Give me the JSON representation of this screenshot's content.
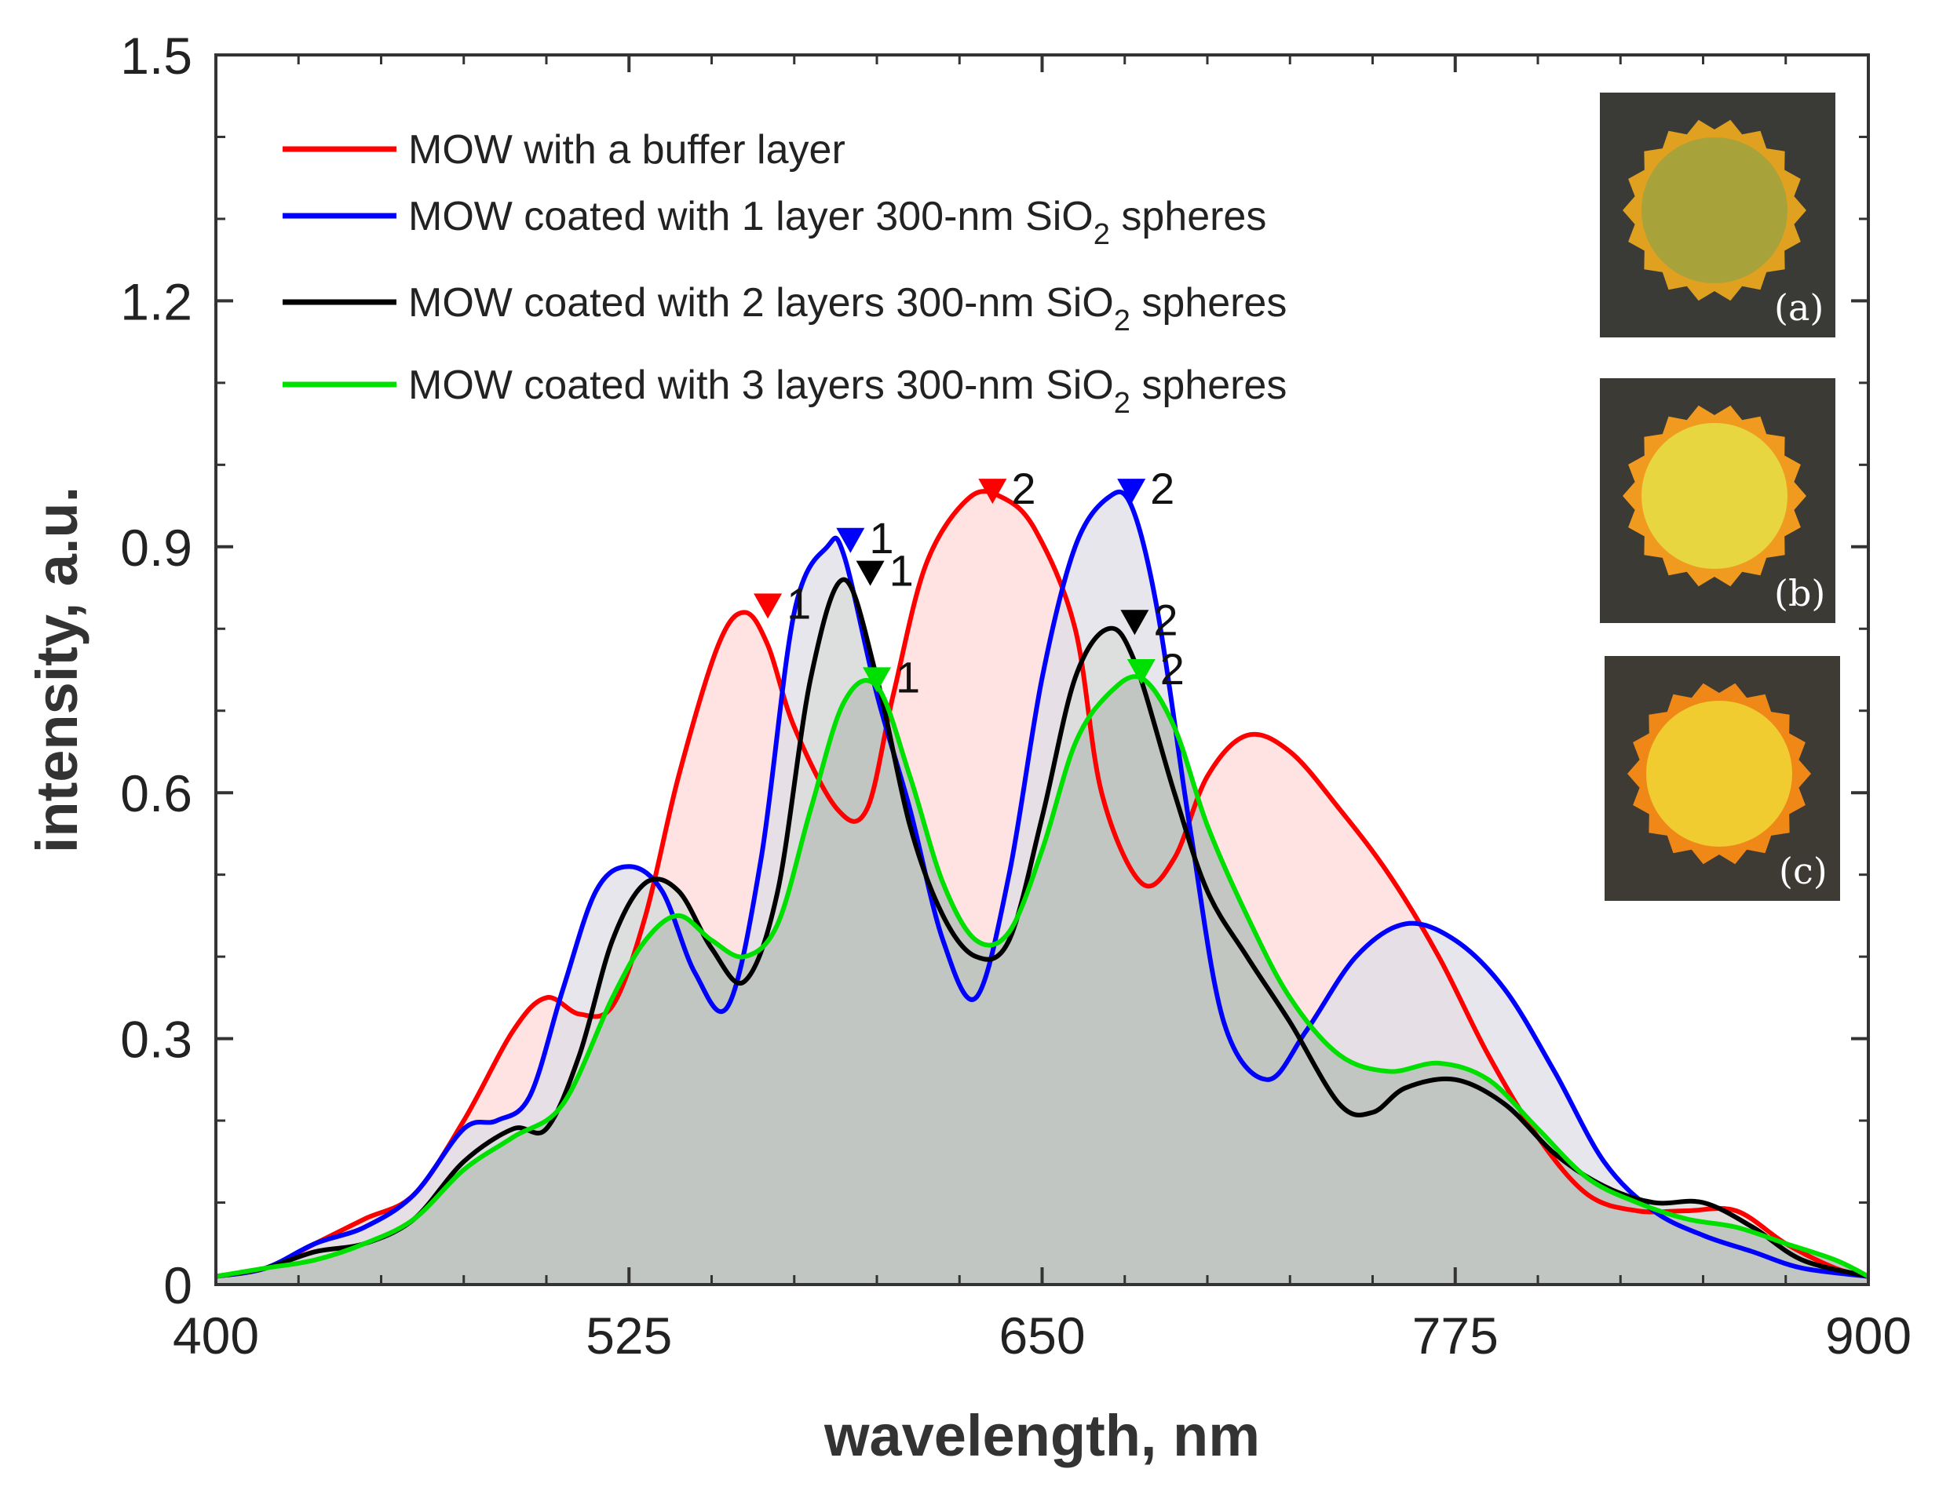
{
  "chart_data": {
    "type": "area",
    "title": "",
    "xlabel": "wavelength, nm",
    "ylabel": "intensity, a.u.",
    "xlim": [
      400,
      900
    ],
    "ylim": [
      0,
      1.5
    ],
    "xticks": [
      400,
      525,
      650,
      775,
      900
    ],
    "yticks": [
      0,
      0.3,
      0.6,
      0.9,
      1.2,
      1.5
    ],
    "xtick_labels": [
      "400",
      "525",
      "650",
      "775",
      "900"
    ],
    "ytick_labels": [
      "0",
      "0.3",
      "0.6",
      "0.9",
      "1.2",
      "1.5"
    ],
    "legend_position": "top-left",
    "series": [
      {
        "name": "MOW with a buffer layer",
        "legend_main": "MOW with a buffer layer",
        "legend_sub": "",
        "legend_tail": "",
        "color": "#ff0000",
        "fill": "#ffd8d8",
        "x": [
          400,
          415,
          430,
          445,
          460,
          475,
          490,
          500,
          510,
          520,
          530,
          540,
          552,
          560,
          567,
          575,
          588,
          597,
          605,
          615,
          628,
          638,
          648,
          660,
          668,
          680,
          690,
          700,
          712,
          725,
          740,
          755,
          770,
          785,
          800,
          815,
          830,
          845,
          860,
          875,
          890,
          900
        ],
        "values": [
          0.01,
          0.02,
          0.05,
          0.08,
          0.11,
          0.2,
          0.31,
          0.35,
          0.33,
          0.34,
          0.45,
          0.62,
          0.78,
          0.82,
          0.78,
          0.68,
          0.58,
          0.58,
          0.72,
          0.88,
          0.96,
          0.96,
          0.92,
          0.8,
          0.6,
          0.49,
          0.52,
          0.62,
          0.67,
          0.65,
          0.58,
          0.5,
          0.4,
          0.28,
          0.18,
          0.11,
          0.09,
          0.09,
          0.09,
          0.05,
          0.02,
          0.01
        ],
        "peaks": [
          {
            "x": 567,
            "y": 0.82,
            "label": "1"
          },
          {
            "x": 635,
            "y": 0.96,
            "label": "2"
          }
        ]
      },
      {
        "name": "MOW coated with 1 layer 300-nm SiO2 spheres",
        "legend_main": "MOW coated with 1 layer 300-nm SiO",
        "legend_sub": "2",
        "legend_tail": " spheres",
        "color": "#0000ff",
        "fill": "#dedee6",
        "x": [
          400,
          415,
          430,
          445,
          460,
          475,
          485,
          495,
          505,
          515,
          525,
          535,
          545,
          555,
          565,
          575,
          585,
          590,
          600,
          610,
          620,
          630,
          640,
          650,
          660,
          670,
          677,
          685,
          695,
          705,
          718,
          730,
          745,
          760,
          775,
          790,
          805,
          820,
          835,
          850,
          865,
          880,
          900
        ],
        "values": [
          0.01,
          0.02,
          0.05,
          0.07,
          0.11,
          0.19,
          0.2,
          0.23,
          0.36,
          0.48,
          0.51,
          0.48,
          0.38,
          0.34,
          0.52,
          0.82,
          0.9,
          0.89,
          0.72,
          0.58,
          0.42,
          0.35,
          0.5,
          0.74,
          0.9,
          0.96,
          0.95,
          0.82,
          0.55,
          0.32,
          0.25,
          0.31,
          0.4,
          0.44,
          0.42,
          0.36,
          0.26,
          0.15,
          0.09,
          0.06,
          0.04,
          0.02,
          0.01
        ],
        "peaks": [
          {
            "x": 592,
            "y": 0.9,
            "label": "1"
          },
          {
            "x": 677,
            "y": 0.96,
            "label": "2"
          }
        ]
      },
      {
        "name": "MOW coated with 2 layers 300-nm SiO2 spheres",
        "legend_main": "MOW coated with 2 layers 300-nm SiO",
        "legend_sub": "2",
        "legend_tail": " spheres",
        "color": "#000000",
        "fill": "#d8dcd8",
        "x": [
          400,
          415,
          430,
          445,
          460,
          475,
          490,
          500,
          510,
          520,
          530,
          540,
          550,
          560,
          570,
          580,
          590,
          600,
          610,
          620,
          630,
          640,
          650,
          660,
          670,
          678,
          690,
          700,
          712,
          725,
          740,
          750,
          760,
          775,
          790,
          805,
          820,
          835,
          850,
          865,
          880,
          900
        ],
        "values": [
          0.01,
          0.02,
          0.04,
          0.05,
          0.08,
          0.15,
          0.19,
          0.19,
          0.28,
          0.42,
          0.49,
          0.48,
          0.41,
          0.37,
          0.48,
          0.74,
          0.86,
          0.74,
          0.56,
          0.45,
          0.4,
          0.42,
          0.57,
          0.74,
          0.8,
          0.76,
          0.6,
          0.48,
          0.4,
          0.32,
          0.22,
          0.21,
          0.24,
          0.25,
          0.22,
          0.16,
          0.12,
          0.1,
          0.1,
          0.07,
          0.03,
          0.01
        ],
        "peaks": [
          {
            "x": 598,
            "y": 0.86,
            "label": "1"
          },
          {
            "x": 678,
            "y": 0.8,
            "label": "2"
          }
        ]
      },
      {
        "name": "MOW coated with 3 layers 300-nm SiO2 spheres",
        "legend_main": "MOW coated with 3 layers 300-nm SiO",
        "legend_sub": "2",
        "legend_tail": " spheres",
        "color": "#00e000",
        "fill": "#c0c4c0",
        "x": [
          400,
          415,
          430,
          445,
          460,
          475,
          490,
          505,
          520,
          530,
          540,
          550,
          560,
          570,
          580,
          590,
          600,
          610,
          620,
          630,
          640,
          650,
          660,
          670,
          680,
          690,
          700,
          712,
          725,
          740,
          755,
          770,
          785,
          800,
          815,
          830,
          845,
          860,
          875,
          890,
          900
        ],
        "values": [
          0.01,
          0.02,
          0.03,
          0.05,
          0.08,
          0.14,
          0.18,
          0.22,
          0.35,
          0.42,
          0.45,
          0.42,
          0.4,
          0.44,
          0.58,
          0.71,
          0.73,
          0.62,
          0.49,
          0.42,
          0.43,
          0.53,
          0.66,
          0.72,
          0.74,
          0.68,
          0.56,
          0.45,
          0.35,
          0.28,
          0.26,
          0.27,
          0.25,
          0.19,
          0.13,
          0.1,
          0.08,
          0.07,
          0.05,
          0.03,
          0.01
        ],
        "peaks": [
          {
            "x": 600,
            "y": 0.73,
            "label": "1"
          },
          {
            "x": 680,
            "y": 0.74,
            "label": "2"
          }
        ]
      }
    ],
    "insets": [
      {
        "label": "(a)",
        "bg": "#3a3a36",
        "core": "#a8a23a",
        "rim": "#e0a020"
      },
      {
        "label": "(b)",
        "bg": "#3c3a34",
        "core": "#e8d640",
        "rim": "#f09a20"
      },
      {
        "label": "(c)",
        "bg": "#3e3a34",
        "core": "#f0cc30",
        "rim": "#f08818"
      }
    ]
  }
}
